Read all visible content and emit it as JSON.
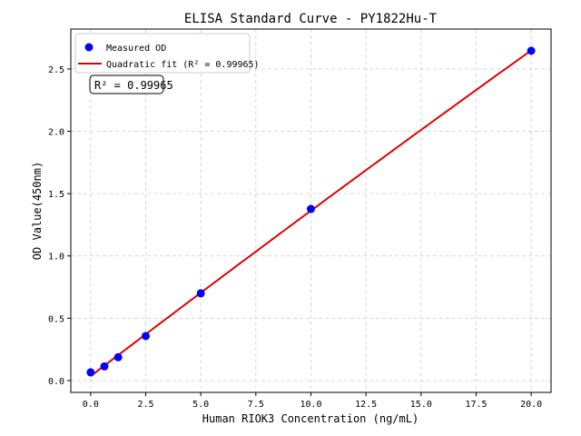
{
  "chart_data": {
    "type": "scatter",
    "title": "ELISA Standard Curve - PY1822Hu-T",
    "xlabel": "Human RIOK3 Concentration (ng/mL)",
    "ylabel": "OD Value(450nm)",
    "xlim": [
      -0.9,
      20.9
    ],
    "ylim": [
      -0.095,
      2.82
    ],
    "xticks": [
      0.0,
      2.5,
      5.0,
      7.5,
      10.0,
      12.5,
      15.0,
      17.5,
      20.0
    ],
    "xtick_labels": [
      "0.0",
      "2.5",
      "5.0",
      "7.5",
      "10.0",
      "12.5",
      "15.0",
      "17.5",
      "20.0"
    ],
    "yticks": [
      0.0,
      0.5,
      1.0,
      1.5,
      2.0,
      2.5
    ],
    "ytick_labels": [
      "0.0",
      "0.5",
      "1.0",
      "1.5",
      "2.0",
      "2.5"
    ],
    "grid": true,
    "legend_position": "top-left",
    "series": [
      {
        "name": "Measured OD",
        "kind": "scatter",
        "color": "#0000ff",
        "x": [
          0,
          0.625,
          1.25,
          2.5,
          5,
          10,
          20
        ],
        "y": [
          0.066,
          0.114,
          0.187,
          0.357,
          0.7,
          1.377,
          2.646
        ]
      },
      {
        "name": "Quadratic fit (R² = 0.99965)",
        "kind": "line",
        "color": "#e00000",
        "fit": "quadratic"
      }
    ],
    "annotation": "R² = 0.99965"
  }
}
